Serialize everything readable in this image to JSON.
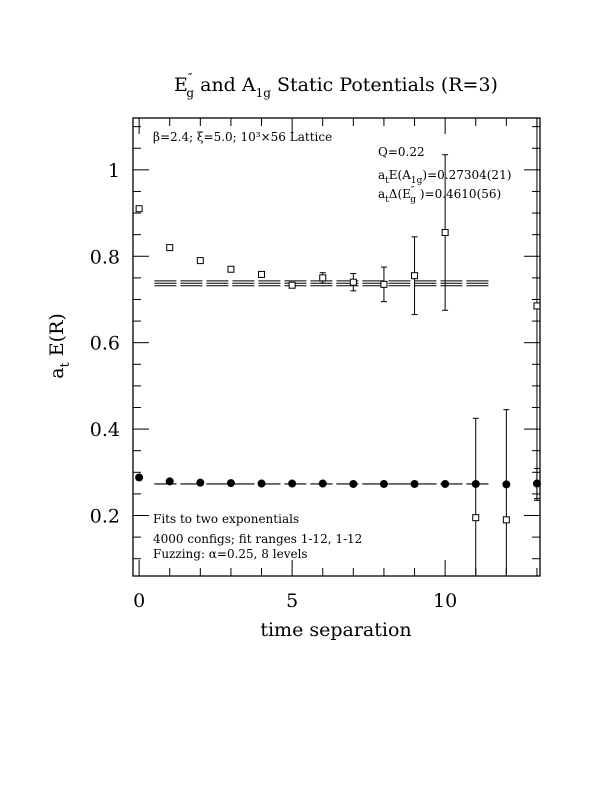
{
  "chart_data": {
    "type": "scatter",
    "title": {
      "p1": "E",
      "p1_sup": "″",
      "p1_sub": "g",
      "p2": " and A",
      "p2_sub": "1g",
      "p3": " Static Potentials (R=3)"
    },
    "xlabel": "time separation",
    "ylabel": {
      "main": "a",
      "sub": "t",
      "rest": " E(R)"
    },
    "xlim": [
      -0.2,
      13.1
    ],
    "ylim": [
      0.06,
      1.12
    ],
    "x_ticks": [
      0,
      5,
      10
    ],
    "y_ticks": [
      0.2,
      0.4,
      0.6,
      0.8,
      1
    ],
    "x_tick_labels": [
      "0",
      "5",
      "10"
    ],
    "y_tick_labels": [
      "0.2",
      "0.4",
      "0.6",
      "0.8",
      "1"
    ],
    "annotations": {
      "top_left": "β=2.4; ξ=5.0; 10³×56 Lattice",
      "q": "Q=0.22",
      "a1g": {
        "a": "a",
        "t": "t",
        "pre": "E(A",
        "sub": "1g",
        "post": ")=0.27304(21)"
      },
      "eg": {
        "a": "a",
        "t": "t",
        "pre": "Δ(E",
        "sup": "″",
        "sub": "g",
        "post": " )=0.4610(56)"
      },
      "bottom_1": "Fits to two exponentials",
      "bottom_2": "4000 configs; fit ranges 1-12, 1-12",
      "bottom_3": "Fuzzing: α=0.25, 8 levels"
    },
    "series": [
      {
        "marker": "square",
        "x": [
          0,
          1,
          2,
          3,
          4,
          5,
          6,
          7,
          8,
          9,
          10,
          11,
          12,
          13
        ],
        "y": [
          0.91,
          0.82,
          0.79,
          0.77,
          0.758,
          0.733,
          0.75,
          0.74,
          0.735,
          0.755,
          0.855,
          0.195,
          0.19,
          0.685
        ],
        "err": [
          0.002,
          0.002,
          0.003,
          0.004,
          0.005,
          0.006,
          0.012,
          0.02,
          0.04,
          0.09,
          0.18,
          0.23,
          0.255,
          0.45
        ]
      },
      {
        "marker": "filled-circle",
        "x": [
          0,
          1,
          2,
          3,
          4,
          5,
          6,
          7,
          8,
          9,
          10,
          11,
          12,
          13
        ],
        "y": [
          0.288,
          0.279,
          0.276,
          0.275,
          0.274,
          0.274,
          0.274,
          0.273,
          0.273,
          0.273,
          0.273,
          0.273,
          0.272,
          0.274
        ],
        "err": [
          0,
          0,
          0,
          0,
          0,
          0,
          0,
          0,
          0,
          0,
          0,
          0,
          0,
          0.035
        ]
      }
    ],
    "fits": [
      {
        "x": [
          0.5,
          11.5
        ],
        "center": 0.7375,
        "band": 0.0056,
        "style": "dashed"
      },
      {
        "x": [
          0.5,
          11.5
        ],
        "center": 0.27304,
        "band": 0.00021,
        "style": "dashed"
      }
    ]
  }
}
